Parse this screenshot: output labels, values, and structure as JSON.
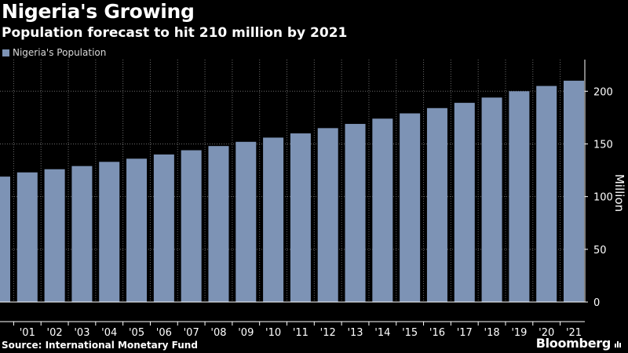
{
  "header": {
    "title": "Nigeria's Growing",
    "subtitle": "Population forecast to hit 210 million by 2021"
  },
  "footer": {
    "source": "Source: International Monetary Fund",
    "brand": "Bloomberg"
  },
  "colors": {
    "background": "#000000",
    "bar": "#7d93b5",
    "grid": "#6a6a6a",
    "axis": "#ffffff"
  },
  "chart_data": {
    "type": "bar",
    "series": [
      {
        "name": "Nigeria's Population",
        "values": [
          119,
          123,
          126,
          129,
          133,
          136,
          140,
          144,
          148,
          152,
          156,
          160,
          165,
          169,
          174,
          179,
          184,
          189,
          194,
          200,
          205,
          210
        ]
      }
    ],
    "categories": [
      "",
      "'01",
      "'02",
      "'03",
      "'04",
      "'05",
      "'06",
      "'07",
      "'08",
      "'09",
      "'10",
      "'11",
      "'12",
      "'13",
      "'14",
      "'15",
      "'16",
      "'17",
      "'18",
      "'19",
      "'20",
      "'21"
    ],
    "ylabel": "Million",
    "yticks": [
      0,
      50,
      100,
      150,
      200
    ],
    "ylim": [
      0,
      230
    ],
    "grid": true,
    "yaxis_side": "right",
    "legend_position": "top-left"
  }
}
